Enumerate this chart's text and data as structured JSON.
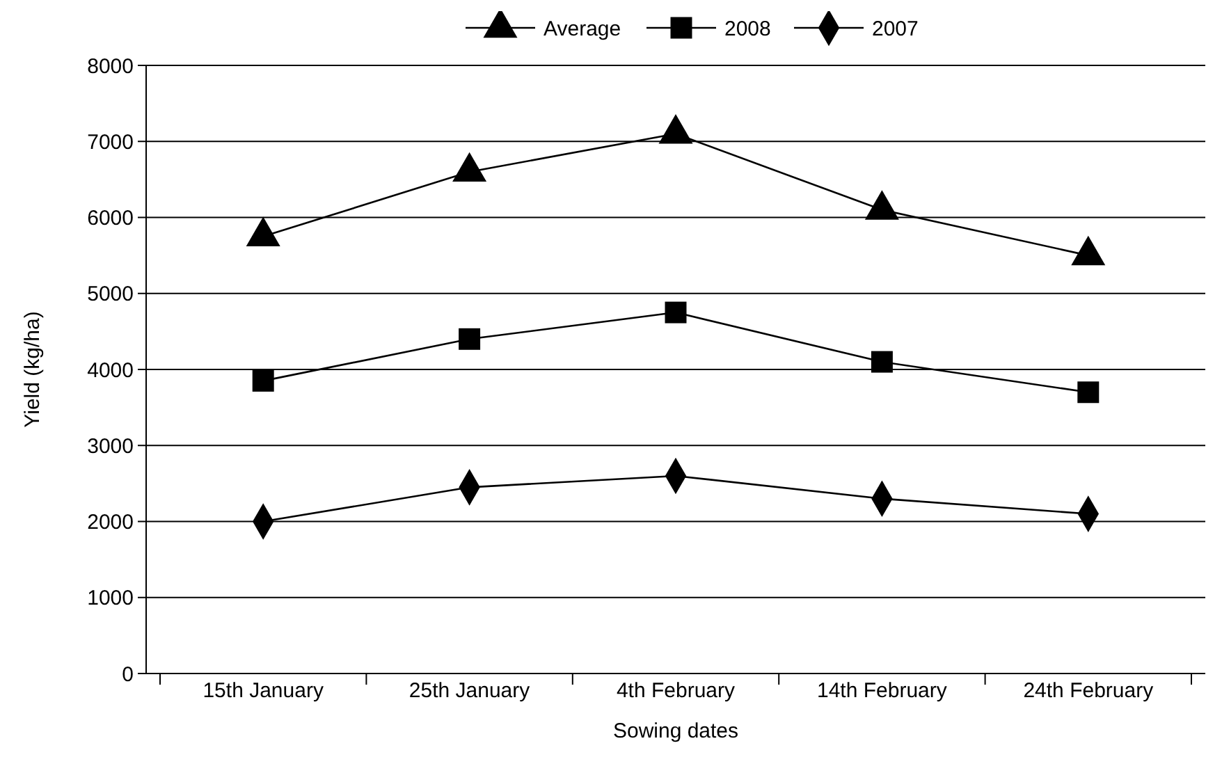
{
  "chart_data": {
    "type": "line",
    "xlabel": "Sowing dates",
    "ylabel": "Yield (kg/ha)",
    "categories": [
      "15th January",
      "25th January",
      "4th February",
      "14th February",
      "24th February"
    ],
    "series": [
      {
        "name": "Average",
        "color": "#000000",
        "marker": "triangle",
        "values": [
          5750,
          6600,
          7100,
          6100,
          5500
        ]
      },
      {
        "name": "2008",
        "color": "#000000",
        "marker": "square",
        "values": [
          3850,
          4400,
          4750,
          4100,
          3700
        ]
      },
      {
        "name": "2007",
        "color": "#000000",
        "marker": "diamond",
        "values": [
          2000,
          2450,
          2600,
          2300,
          2100
        ]
      }
    ],
    "ylim": [
      0,
      8000
    ],
    "yticks": [
      0,
      1000,
      2000,
      3000,
      4000,
      5000,
      6000,
      7000,
      8000
    ],
    "grid": "y",
    "legend": "top",
    "line_style": "solid"
  }
}
